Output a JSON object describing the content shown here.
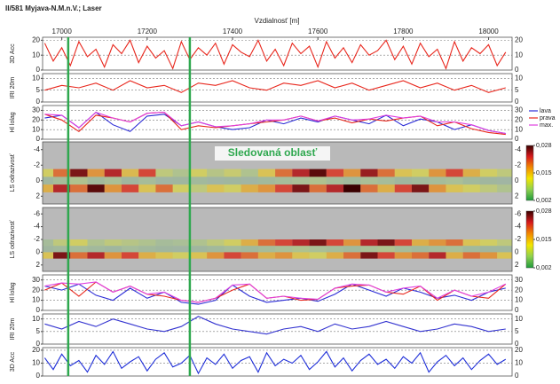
{
  "chart_data": {
    "type": "panels",
    "title": "II/581 Myjava-N.M.n.V.; Laser",
    "x_label": "Vzdialnosť [m]",
    "xlim": [
      16955,
      18055
    ],
    "xticks": [
      17000,
      17200,
      17400,
      17600,
      17800,
      18000
    ],
    "markers": [
      17015,
      17300
    ],
    "marker_color": "#2fa84f",
    "annotation": "Sledovaná oblasť",
    "panels": [
      {
        "type": "line",
        "ylabel": "3D Acc",
        "ylim": [
          0,
          22
        ],
        "yticks": [
          0,
          10,
          20
        ],
        "grid": true,
        "x": [
          16960,
          16980,
          17000,
          17020,
          17040,
          17060,
          17080,
          17100,
          17120,
          17140,
          17160,
          17180,
          17200,
          17220,
          17240,
          17260,
          17280,
          17300,
          17320,
          17340,
          17360,
          17380,
          17400,
          17420,
          17440,
          17460,
          17480,
          17500,
          17520,
          17540,
          17560,
          17580,
          17600,
          17620,
          17640,
          17660,
          17680,
          17700,
          17720,
          17740,
          17760,
          17780,
          17800,
          17820,
          17840,
          17860,
          17880,
          17900,
          17920,
          17940,
          17960,
          17980,
          18000,
          18020,
          18040
        ],
        "series": [
          {
            "color": "#e8261c",
            "values": [
              18,
              6,
              15,
              3,
              19,
              9,
              14,
              2,
              17,
              11,
              20,
              5,
              16,
              8,
              13,
              1,
              19,
              7,
              15,
              10,
              18,
              4,
              17,
              12,
              9,
              20,
              6,
              14,
              3,
              18,
              11,
              16,
              2,
              19,
              8,
              15,
              5,
              17,
              10,
              13,
              20,
              7,
              16,
              4,
              18,
              9,
              14,
              1,
              19,
              6,
              15,
              11,
              17,
              3,
              12
            ]
          }
        ]
      },
      {
        "type": "line",
        "ylabel": "IRI 20m",
        "ylim": [
          0,
          12
        ],
        "yticks": [
          0,
          5,
          10
        ],
        "grid": true,
        "x": [
          16960,
          17000,
          17040,
          17080,
          17120,
          17160,
          17200,
          17240,
          17280,
          17320,
          17360,
          17400,
          17440,
          17480,
          17520,
          17560,
          17600,
          17640,
          17680,
          17720,
          17760,
          17800,
          17840,
          17880,
          17920,
          17960,
          18000,
          18040
        ],
        "series": [
          {
            "color": "#e8261c",
            "values": [
              5,
              7,
              6,
              8,
              5,
              9,
              6,
              7,
              4,
              8,
              7,
              9,
              6,
              5,
              8,
              7,
              9,
              6,
              8,
              5,
              7,
              9,
              6,
              8,
              5,
              7,
              4,
              6
            ]
          }
        ]
      },
      {
        "type": "line",
        "ylabel": "Hl lolag",
        "ylim": [
          0,
          35
        ],
        "yticks": [
          0,
          10,
          20,
          30
        ],
        "grid": true,
        "x": [
          16960,
          17000,
          17040,
          17080,
          17120,
          17160,
          17200,
          17240,
          17280,
          17320,
          17360,
          17400,
          17440,
          17480,
          17520,
          17560,
          17600,
          17640,
          17680,
          17720,
          17760,
          17800,
          17840,
          17880,
          17920,
          17960,
          18000,
          18040
        ],
        "series": [
          {
            "name": "lava",
            "color": "#2a2ad6",
            "values": [
              22,
              25,
              12,
              28,
              15,
              8,
              24,
              26,
              14,
              18,
              13,
              10,
              12,
              20,
              16,
              22,
              18,
              24,
              20,
              16,
              25,
              14,
              21,
              18,
              10,
              15,
              9,
              6
            ]
          },
          {
            "name": "prava",
            "color": "#e8261c",
            "values": [
              26,
              20,
              8,
              25,
              22,
              18,
              27,
              28,
              10,
              14,
              12,
              14,
              16,
              18,
              20,
              24,
              19,
              22,
              17,
              21,
              19,
              22,
              24,
              14,
              18,
              11,
              7,
              5
            ]
          },
          {
            "name": "max.",
            "color": "#e040e0",
            "values": [
              26,
              25,
              12,
              28,
              22,
              18,
              27,
              28,
              14,
              18,
              13,
              14,
              16,
              20,
              20,
              24,
              19,
              24,
              20,
              21,
              25,
              22,
              24,
              18,
              18,
              15,
              9,
              6
            ]
          }
        ]
      },
      {
        "type": "heatmap",
        "ylabel": "LS odrazivosť",
        "ylim": [
          3,
          -5
        ],
        "yticks": [
          -4,
          -2,
          0,
          2
        ],
        "background": "#b9b9b9",
        "x": [
          16960,
          17000,
          17040,
          17080,
          17120,
          17160,
          17200,
          17240,
          17280,
          17320,
          17360,
          17400,
          17440,
          17480,
          17520,
          17560,
          17600,
          17640,
          17680,
          17720,
          17760,
          17800,
          17840,
          17880,
          17920,
          17960,
          18000,
          18040
        ],
        "y": [
          -1,
          0,
          1
        ],
        "z": [
          [
            0.012,
            0.02,
            0.026,
            0.018,
            0.024,
            0.015,
            0.022,
            0.01,
            0.008,
            0.012,
            0.009,
            0.011,
            0.008,
            0.014,
            0.02,
            0.024,
            0.027,
            0.022,
            0.018,
            0.025,
            0.02,
            0.014,
            0.012,
            0.018,
            0.022,
            0.016,
            0.012,
            0.01
          ],
          [
            0.004,
            0.006,
            0.008,
            0.005,
            0.007,
            0.004,
            0.006,
            0.003,
            0.004,
            0.005,
            0.003,
            0.004,
            0.003,
            0.005,
            0.006,
            0.007,
            0.008,
            0.006,
            0.005,
            0.007,
            0.006,
            0.004,
            0.005,
            0.006,
            0.007,
            0.005,
            0.004,
            0.003
          ],
          [
            0.016,
            0.024,
            0.02,
            0.027,
            0.018,
            0.022,
            0.014,
            0.02,
            0.012,
            0.01,
            0.014,
            0.012,
            0.016,
            0.018,
            0.022,
            0.026,
            0.02,
            0.024,
            0.028,
            0.02,
            0.016,
            0.022,
            0.026,
            0.018,
            0.014,
            0.012,
            0.01,
            0.008
          ]
        ],
        "colorscale": [
          "#1f9a3c",
          "#8fd14f",
          "#f3e600",
          "#f28a00",
          "#d7191c",
          "#3a0000"
        ],
        "clim": [
          0.002,
          0.028
        ],
        "cticks": [
          {
            "value": 0.028,
            "label": "0,028"
          },
          {
            "value": 0.015,
            "label": "0,015"
          },
          {
            "value": 0.002,
            "label": "0,002"
          }
        ]
      },
      {
        "type": "heatmap",
        "ylabel": "LS odrazivosť",
        "ylim": [
          3,
          -7
        ],
        "yticks": [
          -6,
          -4,
          -2,
          0,
          2
        ],
        "background": "#b9b9b9",
        "x": [
          16960,
          17000,
          17040,
          17080,
          17120,
          17160,
          17200,
          17240,
          17280,
          17320,
          17360,
          17400,
          17440,
          17480,
          17520,
          17560,
          17600,
          17640,
          17680,
          17720,
          17760,
          17800,
          17840,
          17880,
          17920,
          17960,
          18000,
          18040
        ],
        "y": [
          -1.5,
          -0.5,
          0.5
        ],
        "z": [
          [
            0.006,
            0.01,
            0.012,
            0.008,
            0.01,
            0.009,
            0.008,
            0.006,
            0.007,
            0.008,
            0.01,
            0.012,
            0.016,
            0.02,
            0.022,
            0.024,
            0.026,
            0.022,
            0.018,
            0.024,
            0.026,
            0.022,
            0.016,
            0.018,
            0.02,
            0.014,
            0.012,
            0.01
          ],
          [
            0.004,
            0.005,
            0.006,
            0.005,
            0.004,
            0.006,
            0.005,
            0.004,
            0.003,
            0.004,
            0.005,
            0.006,
            0.005,
            0.006,
            0.007,
            0.008,
            0.007,
            0.006,
            0.005,
            0.007,
            0.008,
            0.006,
            0.005,
            0.006,
            0.007,
            0.005,
            0.004,
            0.004
          ],
          [
            0.014,
            0.026,
            0.02,
            0.024,
            0.018,
            0.022,
            0.016,
            0.014,
            0.012,
            0.014,
            0.018,
            0.022,
            0.02,
            0.016,
            0.018,
            0.014,
            0.012,
            0.016,
            0.02,
            0.026,
            0.022,
            0.018,
            0.02,
            0.024,
            0.016,
            0.02,
            0.018,
            0.014
          ]
        ],
        "colorscale": [
          "#1f9a3c",
          "#8fd14f",
          "#f3e600",
          "#f28a00",
          "#d7191c",
          "#3a0000"
        ],
        "clim": [
          0.002,
          0.028
        ],
        "cticks": [
          {
            "value": 0.028,
            "label": "0,028"
          },
          {
            "value": 0.015,
            "label": "0,015"
          },
          {
            "value": 0.002,
            "label": "0,002"
          }
        ]
      },
      {
        "type": "line",
        "ylabel": "Hl lolag",
        "ylim": [
          0,
          35
        ],
        "yticks": [
          0,
          10,
          20,
          30
        ],
        "grid": true,
        "x": [
          16960,
          17000,
          17040,
          17080,
          17120,
          17160,
          17200,
          17240,
          17280,
          17320,
          17360,
          17400,
          17440,
          17480,
          17520,
          17560,
          17600,
          17640,
          17680,
          17720,
          17760,
          17800,
          17840,
          17880,
          17920,
          17960,
          18000,
          18040
        ],
        "series": [
          {
            "color": "#2a2ad6",
            "values": [
              24,
              20,
              26,
              15,
              10,
              22,
              12,
              18,
              8,
              6,
              10,
              25,
              14,
              8,
              10,
              12,
              9,
              16,
              26,
              20,
              14,
              22,
              18,
              12,
              15,
              10,
              18,
              22
            ]
          },
          {
            "color": "#e8261c",
            "values": [
              20,
              27,
              14,
              28,
              18,
              24,
              16,
              14,
              10,
              8,
              12,
              20,
              26,
              12,
              14,
              10,
              11,
              22,
              24,
              25,
              18,
              16,
              24,
              10,
              20,
              14,
              12,
              26
            ]
          },
          {
            "color": "#e040e0",
            "values": [
              24,
              27,
              26,
              28,
              18,
              24,
              16,
              18,
              10,
              8,
              12,
              25,
              26,
              12,
              14,
              12,
              11,
              22,
              26,
              25,
              18,
              22,
              24,
              12,
              20,
              14,
              18,
              26
            ]
          }
        ]
      },
      {
        "type": "line",
        "ylabel": "IRI 20m",
        "ylim": [
          0,
          12
        ],
        "yticks": [
          0,
          5,
          10
        ],
        "grid": true,
        "x": [
          16960,
          17000,
          17040,
          17080,
          17120,
          17160,
          17200,
          17240,
          17280,
          17320,
          17360,
          17400,
          17440,
          17480,
          17520,
          17560,
          17600,
          17640,
          17680,
          17720,
          17760,
          17800,
          17840,
          17880,
          17920,
          17960,
          18000,
          18040
        ],
        "series": [
          {
            "color": "#3333d0",
            "values": [
              8,
              6,
              9,
              7,
              10,
              8,
              6,
              5,
              7,
              11,
              8,
              6,
              5,
              4,
              6,
              7,
              5,
              8,
              6,
              7,
              9,
              7,
              5,
              6,
              8,
              7,
              5,
              6
            ]
          }
        ]
      },
      {
        "type": "line",
        "ylabel": "3D Acc",
        "ylim": [
          0,
          22
        ],
        "yticks": [
          0,
          10,
          20
        ],
        "grid": true,
        "x": [
          16960,
          16980,
          17000,
          17020,
          17040,
          17060,
          17080,
          17100,
          17120,
          17140,
          17160,
          17180,
          17200,
          17220,
          17240,
          17260,
          17280,
          17300,
          17320,
          17340,
          17360,
          17380,
          17400,
          17420,
          17440,
          17460,
          17480,
          17500,
          17520,
          17540,
          17560,
          17580,
          17600,
          17620,
          17640,
          17660,
          17680,
          17700,
          17720,
          17740,
          17760,
          17780,
          17800,
          17820,
          17840,
          17860,
          17880,
          17900,
          17920,
          17940,
          17960,
          17980,
          18000,
          18020,
          18040
        ],
        "series": [
          {
            "color": "#1f2fd8",
            "values": [
              14,
              5,
              17,
              8,
              12,
              3,
              16,
              9,
              19,
              6,
              11,
              15,
              4,
              13,
              18,
              7,
              10,
              16,
              2,
              14,
              9,
              17,
              6,
              12,
              15,
              3,
              18,
              8,
              13,
              10,
              16,
              5,
              11,
              19,
              7,
              14,
              4,
              12,
              17,
              9,
              13,
              6,
              15,
              10,
              18,
              3,
              11,
              16,
              8,
              14,
              5,
              12,
              17,
              9,
              13
            ]
          }
        ]
      }
    ]
  }
}
